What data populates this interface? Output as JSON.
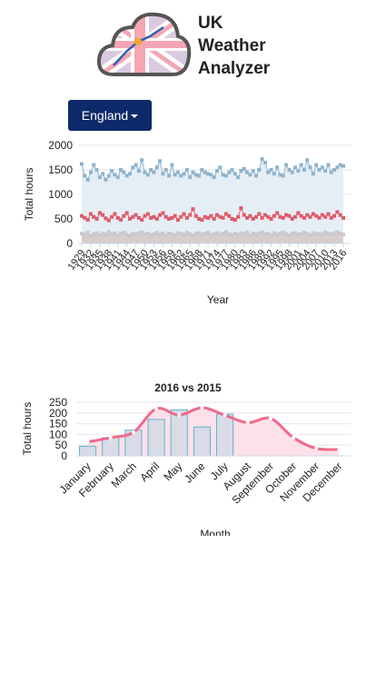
{
  "header": {
    "title_lines": [
      "UK",
      "Weather",
      "Analyzer"
    ]
  },
  "dropdown": {
    "label": "England"
  },
  "chart_data": [
    {
      "type": "line",
      "ylabel": "Total hours",
      "xlabel": "Year",
      "x": [
        1929,
        1930,
        1931,
        1932,
        1933,
        1934,
        1935,
        1936,
        1937,
        1938,
        1939,
        1940,
        1941,
        1942,
        1943,
        1944,
        1945,
        1946,
        1947,
        1948,
        1949,
        1950,
        1951,
        1952,
        1953,
        1954,
        1955,
        1956,
        1957,
        1958,
        1959,
        1960,
        1961,
        1962,
        1963,
        1964,
        1965,
        1966,
        1967,
        1968,
        1969,
        1970,
        1971,
        1972,
        1973,
        1974,
        1975,
        1976,
        1977,
        1978,
        1979,
        1980,
        1981,
        1982,
        1983,
        1984,
        1985,
        1986,
        1987,
        1988,
        1989,
        1990,
        1991,
        1992,
        1993,
        1994,
        1995,
        1996,
        1997,
        1998,
        1999,
        2000,
        2001,
        2002,
        2003,
        2004,
        2005,
        2006,
        2007,
        2008,
        2009,
        2010,
        2011,
        2012,
        2013,
        2014,
        2015,
        2016
      ],
      "xlim": [
        1929,
        2016
      ],
      "xticks": [
        1929,
        1932,
        1935,
        1938,
        1941,
        1944,
        1947,
        1950,
        1953,
        1956,
        1959,
        1962,
        1965,
        1968,
        1971,
        1974,
        1977,
        1980,
        1983,
        1986,
        1989,
        1992,
        1995,
        1998,
        2001,
        2004,
        2007,
        2010,
        2013,
        2016
      ],
      "ylim": [
        0,
        2000
      ],
      "yticks": [
        0,
        500,
        1000,
        1500,
        2000
      ],
      "series": [
        {
          "color": "#8fb3cc",
          "fill": "#e6eef5",
          "values": [
            1620,
            1380,
            1300,
            1450,
            1600,
            1500,
            1350,
            1420,
            1300,
            1380,
            1480,
            1400,
            1350,
            1500,
            1450,
            1380,
            1420,
            1550,
            1600,
            1480,
            1700,
            1450,
            1400,
            1500,
            1450,
            1550,
            1680,
            1420,
            1500,
            1380,
            1600,
            1400,
            1450,
            1380,
            1420,
            1500,
            1350,
            1450,
            1400,
            1380,
            1500,
            1450,
            1420,
            1400,
            1350,
            1480,
            1550,
            1400,
            1380,
            1450,
            1500,
            1420,
            1350,
            1480,
            1520,
            1450,
            1400,
            1480,
            1380,
            1500,
            1720,
            1650,
            1450,
            1500,
            1420,
            1550,
            1400,
            1380,
            1600,
            1500,
            1450,
            1550,
            1480,
            1600,
            1500,
            1700,
            1550,
            1420,
            1600,
            1500,
            1550,
            1480,
            1600,
            1450,
            1500,
            1550,
            1600,
            1580
          ]
        },
        {
          "color": "#e05a6a",
          "values": [
            560,
            520,
            480,
            600,
            540,
            500,
            620,
            580,
            510,
            470,
            540,
            600,
            520,
            480,
            560,
            620,
            500,
            540,
            580,
            520,
            480,
            560,
            600,
            520,
            540,
            500,
            580,
            620,
            540,
            500,
            520,
            560,
            480,
            540,
            600,
            520,
            580,
            700,
            560,
            500,
            480,
            540,
            520,
            560,
            500,
            580,
            540,
            520,
            600,
            560,
            500,
            480,
            540,
            720,
            580,
            520,
            560,
            500,
            540,
            600,
            520,
            580,
            540,
            500,
            560,
            620,
            540,
            520,
            580,
            560,
            500,
            540,
            620,
            560,
            520,
            580,
            540,
            600,
            560,
            520,
            580,
            540,
            600,
            520,
            560,
            640,
            580,
            520
          ]
        },
        {
          "color": "#c9c9cc",
          "fill": "#d8cdcd",
          "values": [
            200,
            180,
            220,
            160,
            190,
            210,
            170,
            200,
            180,
            230,
            190,
            210,
            170,
            200,
            220,
            180,
            160,
            200,
            190,
            210,
            230,
            180,
            200,
            170,
            190,
            220,
            180,
            210,
            160,
            200,
            190,
            170,
            210,
            200,
            180,
            220,
            190,
            160,
            200,
            210,
            180,
            200,
            220,
            170,
            190,
            210,
            180,
            200,
            230,
            190,
            170,
            200,
            180,
            210,
            190,
            220,
            160,
            200,
            180,
            210,
            230,
            190,
            200,
            170,
            210,
            180,
            200,
            220,
            190,
            170,
            200,
            210,
            180,
            190,
            220,
            200,
            170,
            210,
            190,
            200,
            180,
            220,
            200,
            190,
            210,
            230,
            200,
            180
          ]
        }
      ]
    },
    {
      "type": "combo",
      "title": "2016 vs 2015",
      "ylabel": "Total hours",
      "xlabel": "Month",
      "categories": [
        "January",
        "February",
        "March",
        "April",
        "May",
        "June",
        "July",
        "August",
        "September",
        "October",
        "November",
        "December"
      ],
      "ylim": [
        0,
        250
      ],
      "yticks": [
        0,
        50,
        100,
        150,
        200,
        250
      ],
      "series": [
        {
          "type": "spline",
          "color": "#ef6a8c",
          "fill": "#fde1e8",
          "values": [
            65,
            85,
            110,
            220,
            190,
            225,
            190,
            155,
            175,
            85,
            35,
            30
          ]
        },
        {
          "type": "bar",
          "color": "#d9dbe6",
          "values": [
            45,
            85,
            120,
            170,
            215,
            135,
            195,
            null,
            null,
            null,
            null,
            null
          ]
        }
      ]
    }
  ]
}
